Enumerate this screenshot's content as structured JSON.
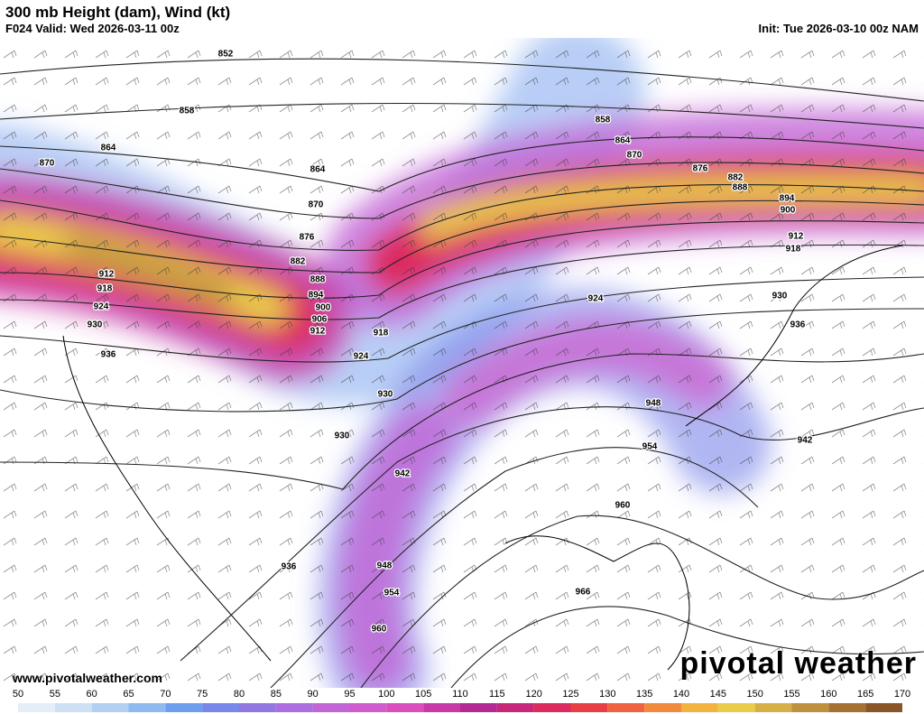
{
  "header": {
    "title": "300 mb Height (dam), Wind (kt)",
    "valid": "F024 Valid: Wed 2026-03-11 00z",
    "init": "Init: Tue 2026-03-10 00z NAM"
  },
  "contour_labels": [
    "852",
    "858",
    "864",
    "864",
    "870",
    "870",
    "876",
    "882",
    "888",
    "894",
    "900",
    "906",
    "912",
    "918",
    "924",
    "930",
    "936",
    "930",
    "924",
    "918",
    "912",
    "930",
    "942",
    "948",
    "954",
    "960",
    "936",
    "858",
    "864",
    "870",
    "876",
    "882",
    "888",
    "894",
    "900",
    "912",
    "918",
    "924",
    "930",
    "936",
    "948",
    "954",
    "960",
    "942",
    "966"
  ],
  "footer": {
    "website": "www.pivotalweather.com",
    "logo": "pivotal weather"
  },
  "colorbar": {
    "ticks": [
      50,
      55,
      60,
      65,
      70,
      75,
      80,
      85,
      90,
      95,
      100,
      105,
      110,
      115,
      120,
      125,
      130,
      135,
      140,
      145,
      150,
      155,
      160,
      165,
      170
    ],
    "colors": [
      "#e4eef8",
      "#cfe0f5",
      "#b3d0f3",
      "#8fbaf0",
      "#6e9fee",
      "#7b86ea",
      "#9276e2",
      "#ad6ee0",
      "#c265d6",
      "#d05ccd",
      "#d94fbe",
      "#c83aa8",
      "#b22a92",
      "#c8287a",
      "#dc2b5e",
      "#e83f45",
      "#ef6340",
      "#f08a3c",
      "#f2b340",
      "#e9cc4a",
      "#d6b046",
      "#bf913f",
      "#a57234",
      "#8a5628"
    ]
  }
}
